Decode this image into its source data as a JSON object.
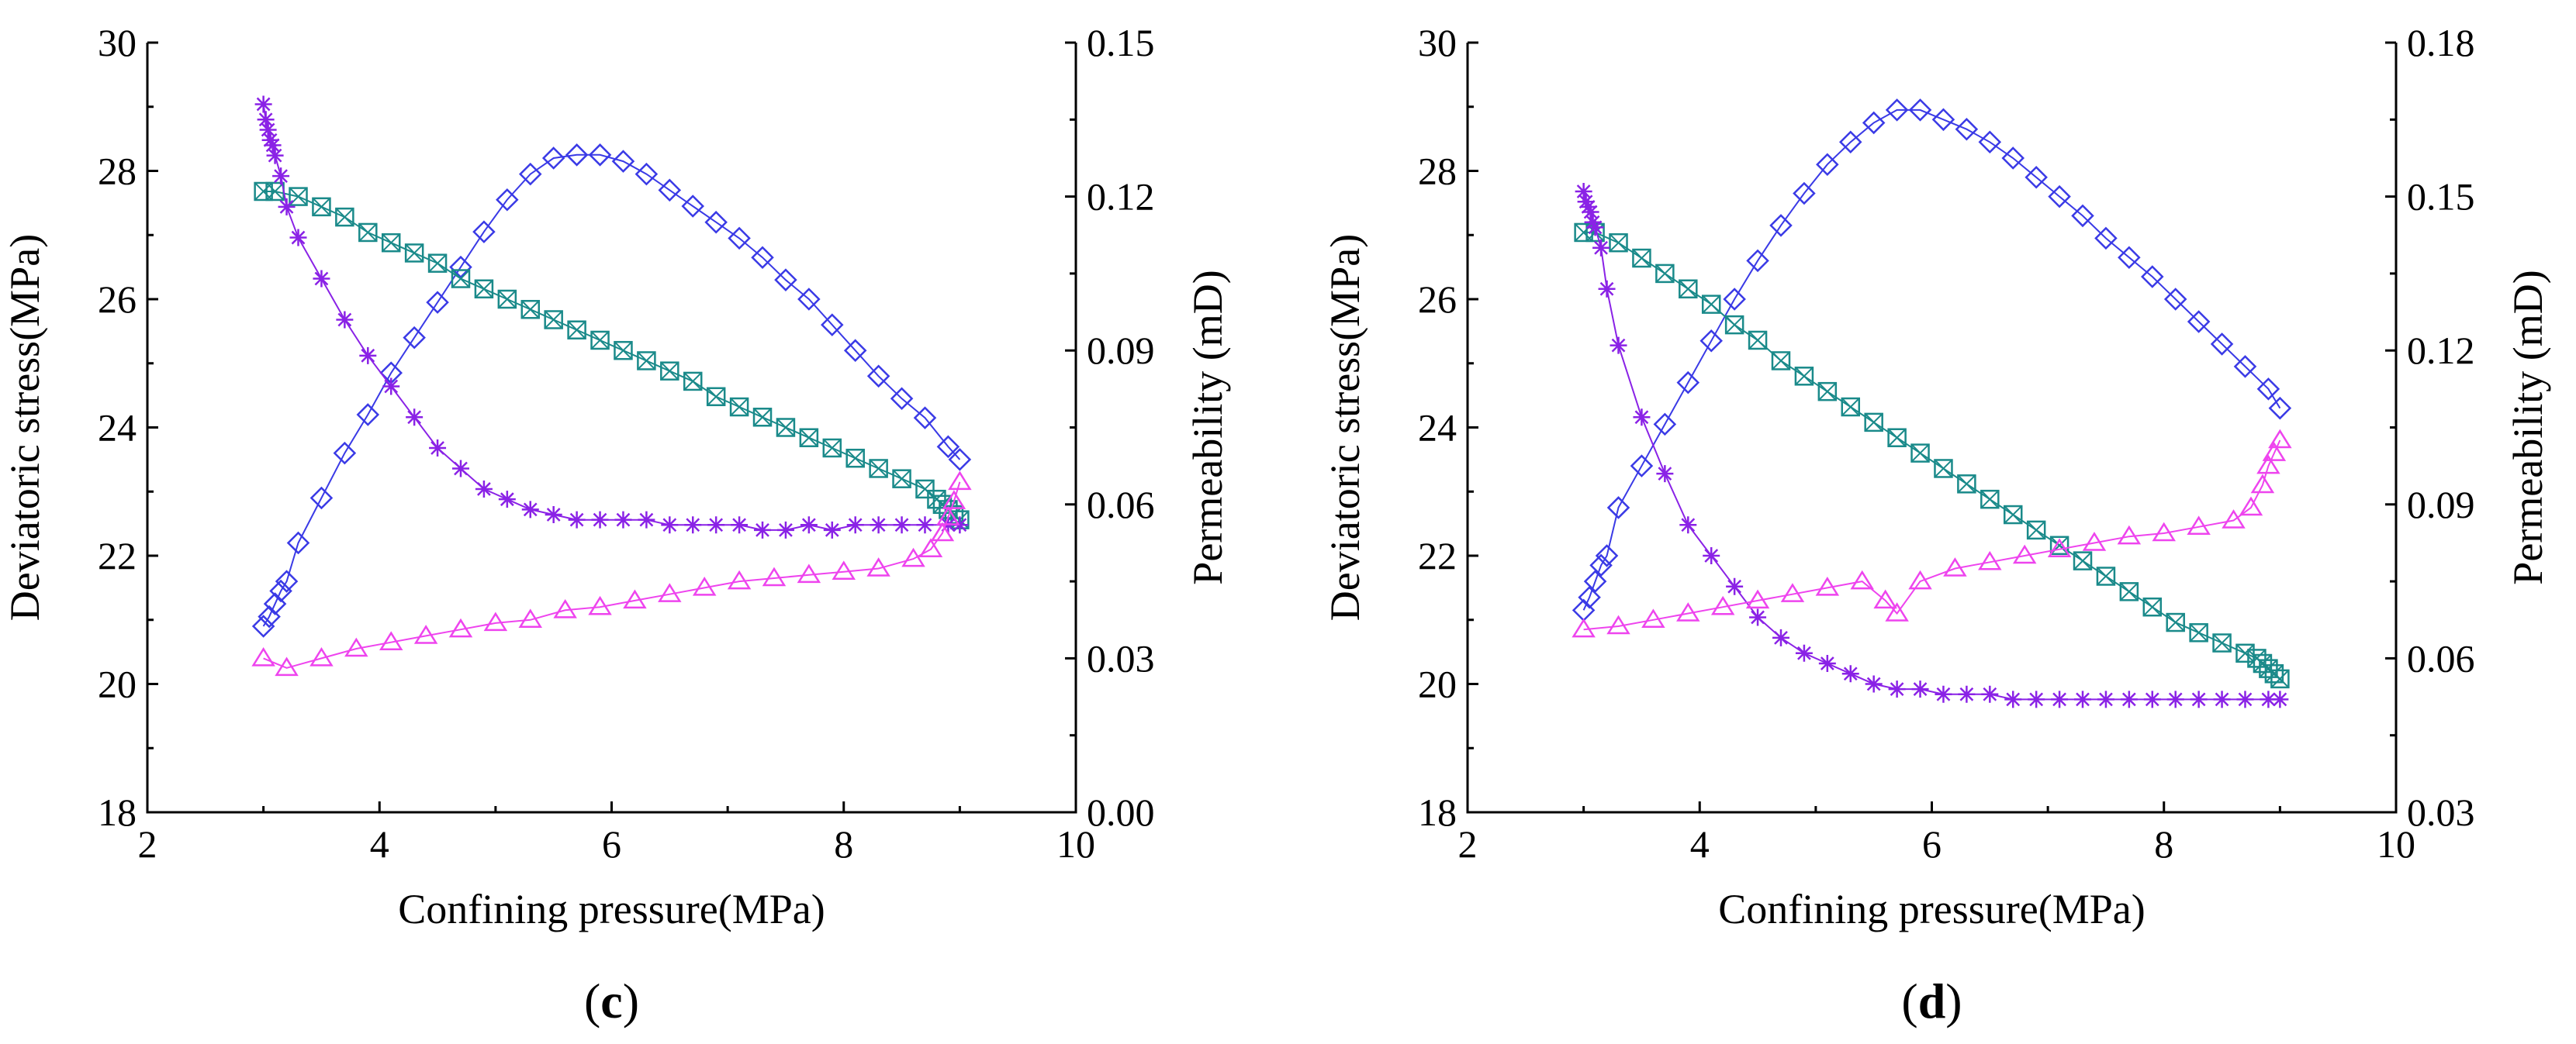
{
  "chart_data": [
    {
      "type": "line",
      "panel_label": "(c)",
      "panel_letter": "c",
      "xlabel": "Confining pressure(MPa)",
      "ylabel": "Deviatoric stress(MPa)",
      "y2label": "Permeability (mD)",
      "xlim": [
        2,
        10
      ],
      "ylim": [
        18,
        30
      ],
      "y2lim": [
        0.0,
        0.15
      ],
      "xticks": [
        "2",
        "4",
        "6",
        "8",
        "10"
      ],
      "yticks": [
        "18",
        "20",
        "22",
        "24",
        "26",
        "28",
        "30"
      ],
      "y2ticks": [
        "0.00",
        "0.03",
        "0.06",
        "0.09",
        "0.12",
        "0.15"
      ],
      "grid": false,
      "colors": {
        "diamond": "#3a3ae6",
        "square": "#1a8a8a",
        "star": "#8a22e6",
        "triangle": "#ee44ee"
      },
      "series": [
        {
          "axis": "y",
          "marker": "diamond",
          "x": [
            3.0,
            3.05,
            3.1,
            3.15,
            3.2,
            3.3,
            3.5,
            3.7,
            3.9,
            4.1,
            4.3,
            4.5,
            4.7,
            4.9,
            5.1,
            5.3,
            5.5,
            5.7,
            5.9,
            6.1,
            6.3,
            6.5,
            6.7,
            6.9,
            7.1,
            7.3,
            7.5,
            7.7,
            7.9,
            8.1,
            8.3,
            8.5,
            8.7,
            8.9,
            9.0
          ],
          "y": [
            20.9,
            21.05,
            21.25,
            21.45,
            21.6,
            22.2,
            22.9,
            23.6,
            24.2,
            24.85,
            25.4,
            25.95,
            26.5,
            27.05,
            27.55,
            27.95,
            28.2,
            28.25,
            28.25,
            28.15,
            27.95,
            27.7,
            27.45,
            27.2,
            26.95,
            26.65,
            26.3,
            26.0,
            25.6,
            25.2,
            24.8,
            24.45,
            24.15,
            23.7,
            23.5
          ]
        },
        {
          "axis": "y2",
          "marker": "square",
          "x": [
            3.0,
            3.1,
            3.3,
            3.5,
            3.7,
            3.9,
            4.1,
            4.3,
            4.5,
            4.7,
            4.9,
            5.1,
            5.3,
            5.5,
            5.7,
            5.9,
            6.1,
            6.3,
            6.5,
            6.7,
            6.9,
            7.1,
            7.3,
            7.5,
            7.7,
            7.9,
            8.1,
            8.3,
            8.5,
            8.7,
            8.8,
            8.85,
            8.9,
            8.95,
            9.0
          ],
          "y": [
            0.121,
            0.121,
            0.12,
            0.118,
            0.116,
            0.113,
            0.111,
            0.109,
            0.107,
            0.104,
            0.102,
            0.1,
            0.098,
            0.096,
            0.094,
            0.092,
            0.09,
            0.088,
            0.086,
            0.084,
            0.081,
            0.079,
            0.077,
            0.075,
            0.073,
            0.071,
            0.069,
            0.067,
            0.065,
            0.063,
            0.061,
            0.06,
            0.059,
            0.058,
            0.057
          ]
        },
        {
          "axis": "y2",
          "marker": "star",
          "x": [
            3.0,
            3.02,
            3.04,
            3.06,
            3.08,
            3.1,
            3.15,
            3.2,
            3.3,
            3.5,
            3.7,
            3.9,
            4.1,
            4.3,
            4.5,
            4.7,
            4.9,
            5.1,
            5.3,
            5.5,
            5.7,
            5.9,
            6.1,
            6.3,
            6.5,
            6.7,
            6.9,
            7.1,
            7.3,
            7.5,
            7.7,
            7.9,
            8.1,
            8.3,
            8.5,
            8.7,
            8.9,
            9.0
          ],
          "y": [
            0.138,
            0.135,
            0.133,
            0.131,
            0.13,
            0.128,
            0.124,
            0.118,
            0.112,
            0.104,
            0.096,
            0.089,
            0.083,
            0.077,
            0.071,
            0.067,
            0.063,
            0.061,
            0.059,
            0.058,
            0.057,
            0.057,
            0.057,
            0.057,
            0.056,
            0.056,
            0.056,
            0.056,
            0.055,
            0.055,
            0.056,
            0.055,
            0.056,
            0.056,
            0.056,
            0.056,
            0.056,
            0.056
          ]
        },
        {
          "axis": "y",
          "marker": "triangle",
          "x": [
            3.0,
            3.2,
            3.5,
            3.8,
            4.1,
            4.4,
            4.7,
            5.0,
            5.3,
            5.6,
            5.9,
            6.2,
            6.5,
            6.8,
            7.1,
            7.4,
            7.7,
            8.0,
            8.3,
            8.6,
            8.75,
            8.85,
            8.9,
            8.95,
            9.0
          ],
          "y": [
            20.4,
            20.25,
            20.4,
            20.55,
            20.65,
            20.75,
            20.85,
            20.95,
            21.0,
            21.15,
            21.2,
            21.3,
            21.4,
            21.5,
            21.6,
            21.65,
            21.7,
            21.75,
            21.8,
            21.95,
            22.1,
            22.35,
            22.6,
            22.85,
            23.15
          ]
        }
      ]
    },
    {
      "type": "line",
      "panel_label": "(d)",
      "panel_letter": "d",
      "xlabel": "Confining pressure(MPa)",
      "ylabel": "Deviatoric stress(MPa)",
      "y2label": "Permeability (mD)",
      "xlim": [
        2,
        10
      ],
      "ylim": [
        18,
        30
      ],
      "y2lim": [
        0.03,
        0.18
      ],
      "xticks": [
        "2",
        "4",
        "6",
        "8",
        "10"
      ],
      "yticks": [
        "18",
        "20",
        "22",
        "24",
        "26",
        "28",
        "30"
      ],
      "y2ticks": [
        "0.03",
        "0.06",
        "0.09",
        "0.12",
        "0.15",
        "0.18"
      ],
      "grid": false,
      "colors": {
        "diamond": "#3a3ae6",
        "square": "#1a8a8a",
        "star": "#8a22e6",
        "triangle": "#ee44ee"
      },
      "series": [
        {
          "axis": "y",
          "marker": "diamond",
          "x": [
            3.0,
            3.05,
            3.1,
            3.15,
            3.2,
            3.3,
            3.5,
            3.7,
            3.9,
            4.1,
            4.3,
            4.5,
            4.7,
            4.9,
            5.1,
            5.3,
            5.5,
            5.7,
            5.9,
            6.1,
            6.3,
            6.5,
            6.7,
            6.9,
            7.1,
            7.3,
            7.5,
            7.7,
            7.9,
            8.1,
            8.3,
            8.5,
            8.7,
            8.9,
            9.0
          ],
          "y": [
            21.15,
            21.35,
            21.6,
            21.85,
            22.0,
            22.75,
            23.4,
            24.05,
            24.7,
            25.35,
            26.0,
            26.6,
            27.15,
            27.65,
            28.1,
            28.45,
            28.75,
            28.95,
            28.95,
            28.8,
            28.65,
            28.45,
            28.2,
            27.9,
            27.6,
            27.3,
            26.95,
            26.65,
            26.35,
            26.0,
            25.65,
            25.3,
            24.95,
            24.6,
            24.3
          ]
        },
        {
          "axis": "y2",
          "marker": "square",
          "x": [
            3.0,
            3.1,
            3.3,
            3.5,
            3.7,
            3.9,
            4.1,
            4.3,
            4.5,
            4.7,
            4.9,
            5.1,
            5.3,
            5.5,
            5.7,
            5.9,
            6.1,
            6.3,
            6.5,
            6.7,
            6.9,
            7.1,
            7.3,
            7.5,
            7.7,
            7.9,
            8.1,
            8.3,
            8.5,
            8.7,
            8.8,
            8.85,
            8.9,
            8.95,
            9.0
          ],
          "y": [
            0.143,
            0.143,
            0.141,
            0.138,
            0.135,
            0.132,
            0.129,
            0.125,
            0.122,
            0.118,
            0.115,
            0.112,
            0.109,
            0.106,
            0.103,
            0.1,
            0.097,
            0.094,
            0.091,
            0.088,
            0.085,
            0.082,
            0.079,
            0.076,
            0.073,
            0.07,
            0.067,
            0.065,
            0.063,
            0.061,
            0.06,
            0.059,
            0.058,
            0.057,
            0.056
          ]
        },
        {
          "axis": "y2",
          "marker": "star",
          "x": [
            3.0,
            3.02,
            3.04,
            3.06,
            3.08,
            3.1,
            3.15,
            3.2,
            3.3,
            3.5,
            3.7,
            3.9,
            4.1,
            4.3,
            4.5,
            4.7,
            4.9,
            5.1,
            5.3,
            5.5,
            5.7,
            5.9,
            6.1,
            6.3,
            6.5,
            6.7,
            6.9,
            7.1,
            7.3,
            7.5,
            7.7,
            7.9,
            8.1,
            8.3,
            8.5,
            8.7,
            8.9,
            9.0
          ],
          "y": [
            0.151,
            0.149,
            0.148,
            0.147,
            0.145,
            0.144,
            0.14,
            0.132,
            0.121,
            0.107,
            0.096,
            0.086,
            0.08,
            0.074,
            0.068,
            0.064,
            0.061,
            0.059,
            0.057,
            0.055,
            0.054,
            0.054,
            0.053,
            0.053,
            0.053,
            0.052,
            0.052,
            0.052,
            0.052,
            0.052,
            0.052,
            0.052,
            0.052,
            0.052,
            0.052,
            0.052,
            0.052,
            0.052
          ]
        },
        {
          "axis": "y",
          "marker": "triangle",
          "x": [
            3.0,
            3.3,
            3.6,
            3.9,
            4.2,
            4.5,
            4.8,
            5.1,
            5.4,
            5.6,
            5.7,
            5.9,
            6.2,
            6.5,
            6.8,
            7.1,
            7.4,
            7.7,
            8.0,
            8.3,
            8.6,
            8.75,
            8.85,
            8.9,
            8.95,
            9.0
          ],
          "y": [
            20.85,
            20.9,
            21.0,
            21.1,
            21.2,
            21.3,
            21.4,
            21.5,
            21.6,
            21.3,
            21.1,
            21.6,
            21.8,
            21.9,
            22.0,
            22.1,
            22.2,
            22.3,
            22.35,
            22.45,
            22.55,
            22.75,
            23.1,
            23.4,
            23.6,
            23.8
          ]
        }
      ]
    }
  ]
}
